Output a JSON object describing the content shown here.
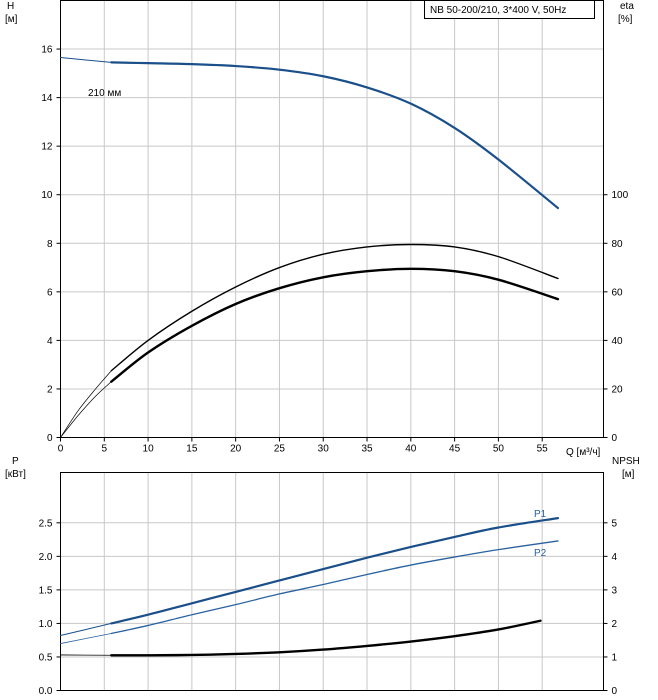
{
  "chart_data": [
    {
      "type": "line",
      "title": "NB 50-200/210, 3*400 V, 50Hz",
      "curve_label": "210 мм",
      "xlabel": "Q [м³/ч]",
      "ylabel_left": {
        "name": "H",
        "unit": "[м]"
      },
      "ylabel_right": {
        "name": "eta",
        "unit": "[%]"
      },
      "xlim": [
        0,
        62
      ],
      "ylim_left": [
        0,
        18
      ],
      "ylim_right": [
        0,
        180
      ],
      "xticks": [
        0,
        5,
        10,
        15,
        20,
        25,
        30,
        35,
        40,
        45,
        50,
        55
      ],
      "yticks_left": [
        0,
        2,
        4,
        6,
        8,
        10,
        12,
        14,
        16
      ],
      "yticks_right": [
        0,
        20,
        40,
        60,
        80,
        100
      ],
      "grid": true,
      "series": [
        {
          "name": "H",
          "axis": "left",
          "color": "#1a4f8a",
          "width": 2.2,
          "x": [
            5.8,
            10,
            15,
            20,
            25,
            30,
            35,
            40,
            45,
            50,
            56.8
          ],
          "y": [
            15.45,
            15.42,
            15.38,
            15.3,
            15.15,
            14.88,
            14.42,
            13.75,
            12.75,
            11.45,
            9.45
          ]
        },
        {
          "name": "H-ext",
          "axis": "left",
          "color": "#1a4f8a",
          "width": 1,
          "x": [
            0,
            5.8
          ],
          "y": [
            15.65,
            15.45
          ]
        },
        {
          "name": "eta",
          "axis": "right",
          "color": "#000000",
          "width": 1.4,
          "x": [
            5.8,
            10,
            15,
            20,
            25,
            30,
            35,
            40,
            45,
            50,
            56.8
          ],
          "y": [
            27.5,
            40,
            52,
            62,
            70,
            75.5,
            78.5,
            79.5,
            78.5,
            74.5,
            65.5
          ]
        },
        {
          "name": "eta-ext",
          "axis": "right",
          "color": "#000000",
          "width": 0.7,
          "x": [
            0,
            2,
            4,
            5.8
          ],
          "y": [
            0,
            11,
            20,
            27.5
          ]
        },
        {
          "name": "eta-pump",
          "axis": "right",
          "color": "#000000",
          "width": 2.4,
          "x": [
            5.8,
            10,
            15,
            20,
            25,
            30,
            35,
            40,
            45,
            50,
            56.8
          ],
          "y": [
            23,
            35,
            46,
            55,
            61.5,
            66,
            68.5,
            69.5,
            68.5,
            65,
            57
          ]
        },
        {
          "name": "eta-pump-ext",
          "axis": "right",
          "color": "#000000",
          "width": 0.7,
          "x": [
            0,
            2,
            4,
            5.8
          ],
          "y": [
            0,
            9,
            17,
            23
          ]
        }
      ]
    },
    {
      "type": "line",
      "xlabel": "",
      "ylabel_left": {
        "name": "P",
        "unit": "[кВт]"
      },
      "ylabel_right": {
        "name": "NPSH",
        "unit": "[м]"
      },
      "xlim": [
        0,
        62
      ],
      "ylim_left": [
        0,
        3.25
      ],
      "ylim_right": [
        0,
        6.5
      ],
      "yticks_left": [
        0.0,
        0.5,
        1.0,
        1.5,
        2.0,
        2.5
      ],
      "yticks_left_labels": [
        "0.0",
        "0.5",
        "1.0",
        "1.5",
        "2.0",
        "2.5"
      ],
      "yticks_right": [
        0,
        1,
        2,
        3,
        4,
        5
      ],
      "grid": true,
      "series": [
        {
          "name": "P1",
          "label": "P1",
          "axis": "left",
          "color": "#1a4f8a",
          "width": 2.2,
          "x": [
            5.8,
            10,
            15,
            20,
            25,
            30,
            35,
            40,
            45,
            50,
            56.8
          ],
          "y": [
            1.0,
            1.13,
            1.3,
            1.47,
            1.64,
            1.81,
            1.98,
            2.14,
            2.29,
            2.43,
            2.57
          ]
        },
        {
          "name": "P1-ext",
          "axis": "left",
          "color": "#1a4f8a",
          "width": 1,
          "x": [
            0,
            5.8
          ],
          "y": [
            0.82,
            1.0
          ]
        },
        {
          "name": "P2",
          "label": "P2",
          "axis": "left",
          "color": "#2a62a0",
          "width": 1.3,
          "x": [
            5.8,
            10,
            15,
            20,
            25,
            30,
            35,
            40,
            45,
            50,
            56.8
          ],
          "y": [
            0.85,
            0.97,
            1.13,
            1.28,
            1.44,
            1.58,
            1.73,
            1.87,
            1.99,
            2.1,
            2.23
          ]
        },
        {
          "name": "P2-ext",
          "axis": "left",
          "color": "#2a62a0",
          "width": 0.8,
          "x": [
            0,
            5.8
          ],
          "y": [
            0.7,
            0.85
          ]
        },
        {
          "name": "NPSH",
          "axis": "right",
          "color": "#000000",
          "width": 2.4,
          "x": [
            5.8,
            10,
            15,
            20,
            25,
            30,
            35,
            40,
            45,
            50,
            54.8
          ],
          "y": [
            1.05,
            1.05,
            1.06,
            1.09,
            1.14,
            1.22,
            1.33,
            1.46,
            1.62,
            1.82,
            2.08
          ]
        },
        {
          "name": "NPSH-ext",
          "axis": "right",
          "color": "#000000",
          "width": 0.8,
          "x": [
            0,
            5.8
          ],
          "y": [
            1.06,
            1.05
          ]
        }
      ]
    }
  ]
}
